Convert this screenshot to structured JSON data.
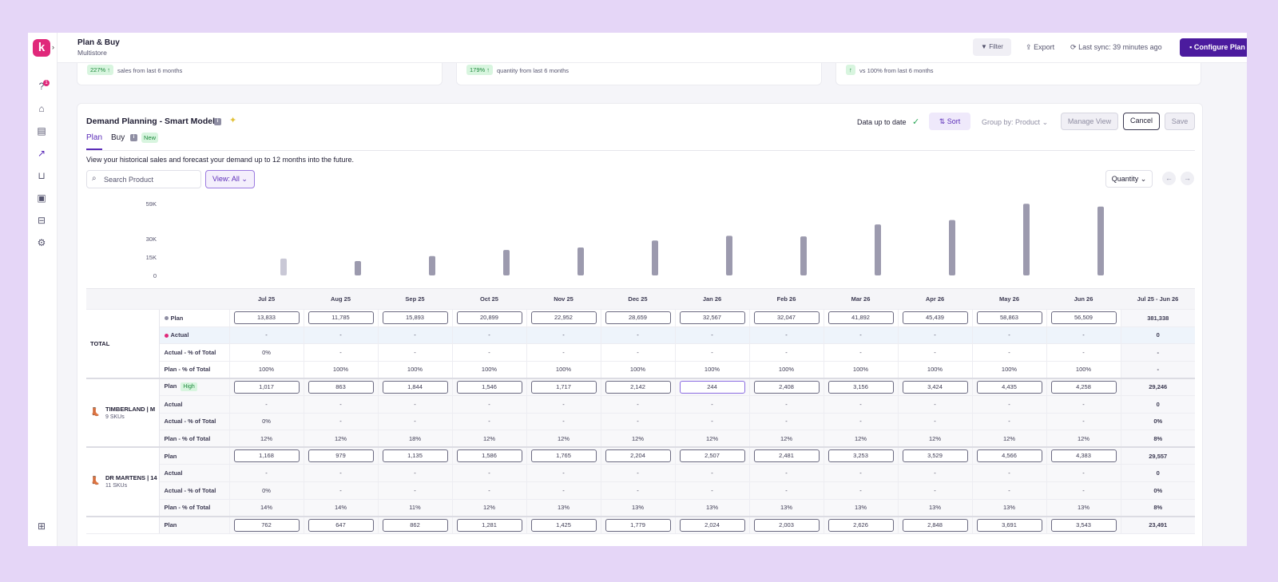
{
  "header": {
    "title": "Plan & Buy",
    "subtitle": "Multistore",
    "filter": "Filter",
    "export": "Export",
    "sync": "Last sync: 39 minutes ago",
    "configure": "Configure Plan"
  },
  "sidebar": {
    "logo": "k",
    "badge": "1"
  },
  "stats": [
    {
      "badge": "227% ↑",
      "text": "sales from last 6 months"
    },
    {
      "badge": "179% ↑",
      "text": "quantity from last 6 months"
    },
    {
      "badge": "↑",
      "text": "vs 100% from last 6 months"
    }
  ],
  "card": {
    "title": "Demand Planning - Smart Model",
    "tabs": {
      "plan": "Plan",
      "buy": "Buy",
      "new": "New"
    },
    "up_to_date": "Data up to date",
    "sort": "Sort",
    "group_by": "Group by: Product",
    "manage_view": "Manage View",
    "cancel": "Cancel",
    "save": "Save",
    "description": "View your historical sales and forecast your demand up to 12 months into the future.",
    "search_placeholder": "Search Product",
    "view_all": "View: All",
    "quantity": "Quantity"
  },
  "chart_data": {
    "type": "bar",
    "categories": [
      "Jul 25",
      "Aug 25",
      "Sep 25",
      "Oct 25",
      "Nov 25",
      "Dec 25",
      "Jan 26",
      "Feb 26",
      "Mar 26",
      "Apr 26",
      "May 26",
      "Jun 26"
    ],
    "values": [
      13833,
      11785,
      15893,
      20899,
      22952,
      28659,
      32567,
      32047,
      41892,
      45439,
      58863,
      56509
    ],
    "y_ticks": [
      "59K",
      "30K",
      "15K",
      "0"
    ],
    "ylim": [
      0,
      59000
    ],
    "colors": {
      "first": "#c9c8d6",
      "rest": "#9c9aae"
    }
  },
  "table": {
    "months": [
      "Jul 25",
      "Aug 25",
      "Sep 25",
      "Oct 25",
      "Nov 25",
      "Dec 25",
      "Jan 26",
      "Feb 26",
      "Mar 26",
      "Apr 26",
      "May 26",
      "Jun 26"
    ],
    "range_header": "Jul 25 - Jun 26",
    "groups": [
      {
        "name": "TOTAL",
        "skus": "",
        "rows": [
          {
            "label": "Plan",
            "dot": "#8f8ea3",
            "input": true,
            "values": [
              "13,833",
              "11,785",
              "15,893",
              "20,899",
              "22,952",
              "28,659",
              "32,567",
              "32,047",
              "41,892",
              "45,439",
              "58,863",
              "56,509"
            ],
            "total": "381,338"
          },
          {
            "label": "Actual",
            "dot": "#e0287a",
            "highlight": true,
            "values": [
              "-",
              "-",
              "-",
              "-",
              "-",
              "-",
              "-",
              "-",
              "-",
              "-",
              "-",
              "-"
            ],
            "total": "0"
          },
          {
            "label": "Actual - % of Total",
            "values": [
              "0%",
              "-",
              "-",
              "-",
              "-",
              "-",
              "-",
              "-",
              "-",
              "-",
              "-",
              "-"
            ],
            "total": "-"
          },
          {
            "label": "Plan - % of Total",
            "values": [
              "100%",
              "100%",
              "100%",
              "100%",
              "100%",
              "100%",
              "100%",
              "100%",
              "100%",
              "100%",
              "100%",
              "100%"
            ],
            "total": "-"
          }
        ]
      },
      {
        "name": "TIMBERLAND | M",
        "skus": "9 SKUs",
        "rows": [
          {
            "label": "Plan",
            "tag": "High",
            "input": true,
            "values": [
              "1,017",
              "863",
              "1,844",
              "1,546",
              "1,717",
              "2,142",
              "244",
              "2,408",
              "3,156",
              "3,424",
              "4,435",
              "4,258"
            ],
            "total": "29,246"
          },
          {
            "label": "Actual",
            "values": [
              "-",
              "-",
              "-",
              "-",
              "-",
              "-",
              "-",
              "-",
              "-",
              "-",
              "-",
              "-"
            ],
            "total": "0"
          },
          {
            "label": "Actual - % of Total",
            "values": [
              "0%",
              "-",
              "-",
              "-",
              "-",
              "-",
              "-",
              "-",
              "-",
              "-",
              "-",
              "-"
            ],
            "total": "0%"
          },
          {
            "label": "Plan - % of Total",
            "values": [
              "12%",
              "12%",
              "18%",
              "12%",
              "12%",
              "12%",
              "12%",
              "12%",
              "12%",
              "12%",
              "12%",
              "12%"
            ],
            "total": "8%"
          }
        ]
      },
      {
        "name": "DR MARTENS | 14",
        "skus": "11 SKUs",
        "rows": [
          {
            "label": "Plan",
            "input": true,
            "values": [
              "1,168",
              "979",
              "1,135",
              "1,586",
              "1,765",
              "2,204",
              "2,507",
              "2,481",
              "3,253",
              "3,529",
              "4,566",
              "4,383"
            ],
            "total": "29,557"
          },
          {
            "label": "Actual",
            "values": [
              "-",
              "-",
              "-",
              "-",
              "-",
              "-",
              "-",
              "-",
              "-",
              "-",
              "-",
              "-"
            ],
            "total": "0"
          },
          {
            "label": "Actual - % of Total",
            "values": [
              "0%",
              "-",
              "-",
              "-",
              "-",
              "-",
              "-",
              "-",
              "-",
              "-",
              "-",
              "-"
            ],
            "total": "0%"
          },
          {
            "label": "Plan - % of Total",
            "values": [
              "14%",
              "14%",
              "11%",
              "12%",
              "13%",
              "13%",
              "13%",
              "13%",
              "13%",
              "13%",
              "13%",
              "13%"
            ],
            "total": "8%"
          }
        ]
      },
      {
        "name": "",
        "skus": "",
        "rows": [
          {
            "label": "Plan",
            "input": true,
            "values": [
              "762",
              "647",
              "862",
              "1,281",
              "1,425",
              "1,779",
              "2,024",
              "2,003",
              "2,626",
              "2,848",
              "3,691",
              "3,543"
            ],
            "total": "23,491"
          }
        ]
      }
    ]
  }
}
